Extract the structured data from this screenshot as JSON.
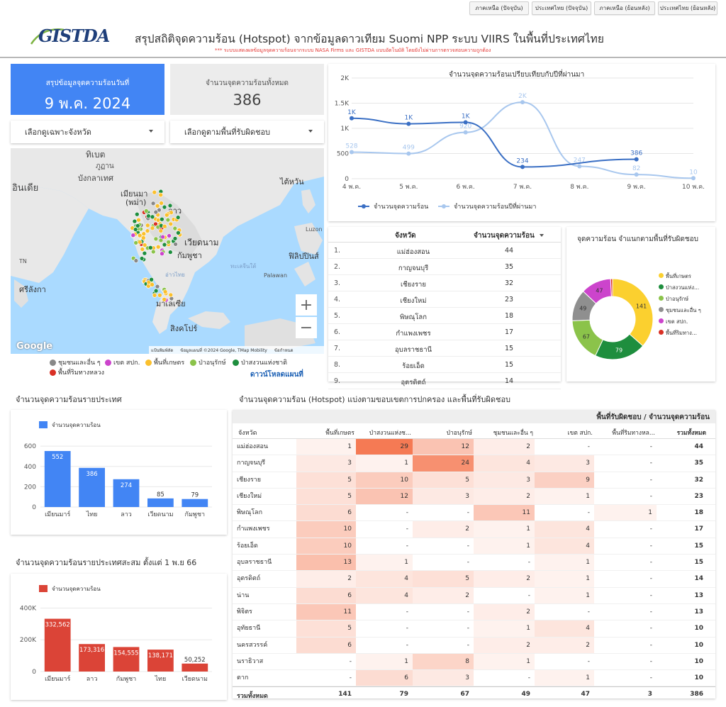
{
  "tabs": [
    "ภาคเหนือ (ปัจจุบัน)",
    "ประเทศไทย (ปัจจุบัน)",
    "ภาคเหนือ (ย้อนหลัง)",
    "ประเทศไทย (ย้อนหลัง)"
  ],
  "header": {
    "logo_text": "GISTDA",
    "title": "สรุปสถิติจุดความร้อน (Hotspot) จากข้อมูลดาวเทียม Suomi NPP ระบบ VIIRS  ในพื้นที่ประเทศไทย",
    "subtitle": "*** ระบบแสดงผลข้อมูลจุดความร้อนจากระบบ NASA Firms และ GISTDA แบบอัตโนมัติ โดยยังไม่ผ่านการตรวจสอบความถูกต้อง"
  },
  "summary": {
    "date_label": "สรุปข้อมูลจุดความร้อนวันที่",
    "date_value": "9 พ.ค. 2024",
    "total_label": "จำนวนจุดความร้อนทั้งหมด",
    "total_value": "386"
  },
  "filters": {
    "province": "เลือกดูเฉพาะจังหวัด",
    "area": "เลือกดูตามพื้นที่รับผิดชอบ"
  },
  "map": {
    "labels": [
      "ทิเบต",
      "ภูฏาน",
      "บังกลาเทศ",
      "อินเดีย",
      "เมียนมา",
      "(พม่า)",
      "ลาว",
      "เวียดนาม",
      "กัมพูชา",
      "ไต้หวัน",
      "ฟิลิปปินส์",
      "ศรีลังกา",
      "มาเลเซีย",
      "สิงคโปร์",
      "ทะเลจีนใต้",
      "Luzon",
      "Palawan",
      "อ่าวไทย",
      "TN",
      "Google"
    ],
    "attribution": [
      "แป้นพิมพ์ลัด",
      "ข้อมูลแผนที่ ©2024 Google, TMap Mobility",
      "ข้อกำหนด"
    ],
    "legend": [
      "ชุมชนและอื่น ๆ",
      "เขต สปก.",
      "พื้นที่เกษตร",
      "ป่าอนุรักษ์",
      "ป่าสงวนแห่งชาติ",
      "พื้นที่ริมทางหลวง"
    ],
    "legend_colors": [
      "#888888",
      "#cc44cc",
      "#fbc02d",
      "#8bc34a",
      "#1e8e3e",
      "#d93025"
    ],
    "download": "ดาวน์โหลดแผนที่",
    "zoom_in": "+",
    "zoom_out": "−"
  },
  "colors": {
    "accent": "#4285f4",
    "hotspot_2024": "#3a6fc4",
    "hotspot_prev": "#a8c7ee",
    "red_bar": "#db4437",
    "heat": "#f46d43"
  },
  "line_chart": {
    "title": "จำนวนจุดความร้อนเปรียบเทียบกับปีที่ผ่านมา",
    "chart_data": {
      "type": "line",
      "x": [
        "4 พ.ค.",
        "5 พ.ค.",
        "6 พ.ค.",
        "7 พ.ค.",
        "8 พ.ค.",
        "9 พ.ค.",
        "10 พ.ค."
      ],
      "ylim": [
        0,
        2000
      ],
      "yticks": [
        "0",
        "500",
        "1K",
        "1.5K",
        "2K"
      ],
      "series": [
        {
          "name": "จำนวนจุดความร้อน",
          "values": [
            1200,
            1090,
            1120,
            234,
            null,
            386,
            null
          ],
          "labels": [
            "1K",
            "1K",
            "1K",
            "234",
            "",
            "386",
            ""
          ]
        },
        {
          "name": "จำนวนจุดความร้อนปีที่ผ่านมา",
          "values": [
            528,
            499,
            920,
            1520,
            247,
            82,
            10
          ],
          "labels": [
            "528",
            "499",
            "920",
            "2K",
            "247",
            "82",
            "10"
          ]
        }
      ]
    }
  },
  "province_table": {
    "headers": [
      "จังหวัด",
      "จำนวนจุดความร้อน"
    ],
    "rows": [
      [
        "1.",
        "แม่ฮ่องสอน",
        "44"
      ],
      [
        "2.",
        "กาญจนบุรี",
        "35"
      ],
      [
        "3.",
        "เชียงราย",
        "32"
      ],
      [
        "4.",
        "เชียงใหม่",
        "23"
      ],
      [
        "5.",
        "พิษณุโลก",
        "18"
      ],
      [
        "6.",
        "กำแพงเพชร",
        "17"
      ],
      [
        "7.",
        "อุบลราชธานี",
        "15"
      ],
      [
        "8.",
        "ร้อยเอ็ด",
        "15"
      ],
      [
        "9.",
        "อุตรดิตถ์",
        "14"
      ]
    ]
  },
  "donut": {
    "title": "จุดความร้อน จำแนกตามพื้นที่รับผิดชอบ",
    "chart_data": {
      "type": "pie",
      "categories": [
        "พื้นที่เกษตร",
        "ป่าสงวนแห่ง...",
        "ป่าอนุรักษ์",
        "ชุมชนและอื่น ๆ",
        "เขต สปก.",
        "พื้นที่ริมทาง..."
      ],
      "values": [
        141,
        79,
        67,
        49,
        47,
        3
      ],
      "colors": [
        "#fbd02f",
        "#1e8e3e",
        "#8bc34a",
        "#8f8f8f",
        "#cc44cc",
        "#d93025"
      ]
    }
  },
  "bar_country": {
    "title": "จำนวนจุดความร้อนรายประเทศ",
    "chart_data": {
      "type": "bar",
      "series_name": "จำนวนจุดความร้อน",
      "categories": [
        "เมียนมาร์",
        "ไทย",
        "ลาว",
        "เวียดนาม",
        "กัมพูชา"
      ],
      "values": [
        552,
        386,
        274,
        85,
        79
      ],
      "ylim": [
        0,
        650
      ],
      "yticks": [
        "0",
        "200",
        "400",
        "600"
      ]
    }
  },
  "bar_cumulative": {
    "title": "จำนวนจุดความร้อนรายประเทศสะสม ตั้งแต่ 1 พ.ย 66",
    "chart_data": {
      "type": "bar",
      "series_name": "จำนวนจุดความร้อน",
      "categories": [
        "เมียนมาร์",
        "ลาว",
        "กัมพูชา",
        "ไทย",
        "เวียดนาม"
      ],
      "values": [
        332562,
        173316,
        154555,
        138171,
        50252
      ],
      "labels": [
        "332,562",
        "173,316",
        "154,555",
        "138,171",
        "50,252"
      ],
      "ylim": [
        0,
        420000
      ],
      "yticks": [
        "0",
        "200K",
        "400K"
      ]
    }
  },
  "pivot": {
    "title": "จำนวนจุดความร้อน (Hotspot) แบ่งตามขอบเขตการปกครอง และพื้นที่รับผิดชอบ",
    "header_group": "พื้นที่รับผิดชอบ / จำนวนจุดความร้อน",
    "row_header": "จังหวัด",
    "columns": [
      "พื้นที่เกษตร",
      "ป่าสงวนแห่งช...",
      "ป่าอนุรักษ์",
      "ชุมชนและอื่น ๆ",
      "เขต สปก.",
      "พื้นที่ริมทางหล...",
      "รวมทั้งหมด"
    ],
    "rows": [
      [
        "แม่ฮ่องสอน",
        "1",
        "29",
        "12",
        "2",
        "-",
        "-",
        "44"
      ],
      [
        "กาญจนบุรี",
        "3",
        "1",
        "24",
        "4",
        "3",
        "-",
        "35"
      ],
      [
        "เชียงราย",
        "5",
        "10",
        "5",
        "3",
        "9",
        "-",
        "32"
      ],
      [
        "เชียงใหม่",
        "5",
        "12",
        "3",
        "2",
        "1",
        "-",
        "23"
      ],
      [
        "พิษณุโลก",
        "6",
        "-",
        "-",
        "11",
        "-",
        "1",
        "18"
      ],
      [
        "กำแพงเพชร",
        "10",
        "-",
        "2",
        "1",
        "4",
        "-",
        "17"
      ],
      [
        "ร้อยเอ็ด",
        "10",
        "-",
        "-",
        "1",
        "4",
        "-",
        "15"
      ],
      [
        "อุบลราชธานี",
        "13",
        "1",
        "-",
        "-",
        "1",
        "-",
        "15"
      ],
      [
        "อุตรดิตถ์",
        "2",
        "4",
        "5",
        "2",
        "1",
        "-",
        "14"
      ],
      [
        "น่าน",
        "6",
        "4",
        "2",
        "-",
        "1",
        "-",
        "13"
      ],
      [
        "พิจิตร",
        "11",
        "-",
        "-",
        "2",
        "-",
        "-",
        "13"
      ],
      [
        "อุทัยธานี",
        "5",
        "-",
        "-",
        "1",
        "4",
        "-",
        "10"
      ],
      [
        "นครสวรรค์",
        "6",
        "-",
        "-",
        "2",
        "2",
        "-",
        "10"
      ],
      [
        "นราธิวาส",
        "-",
        "1",
        "8",
        "1",
        "-",
        "-",
        "10"
      ],
      [
        "ตาก",
        "-",
        "6",
        "3",
        "-",
        "1",
        "-",
        "10"
      ]
    ],
    "totals": [
      "รวมทั้งหมด",
      "141",
      "79",
      "67",
      "49",
      "47",
      "3",
      "386"
    ]
  }
}
